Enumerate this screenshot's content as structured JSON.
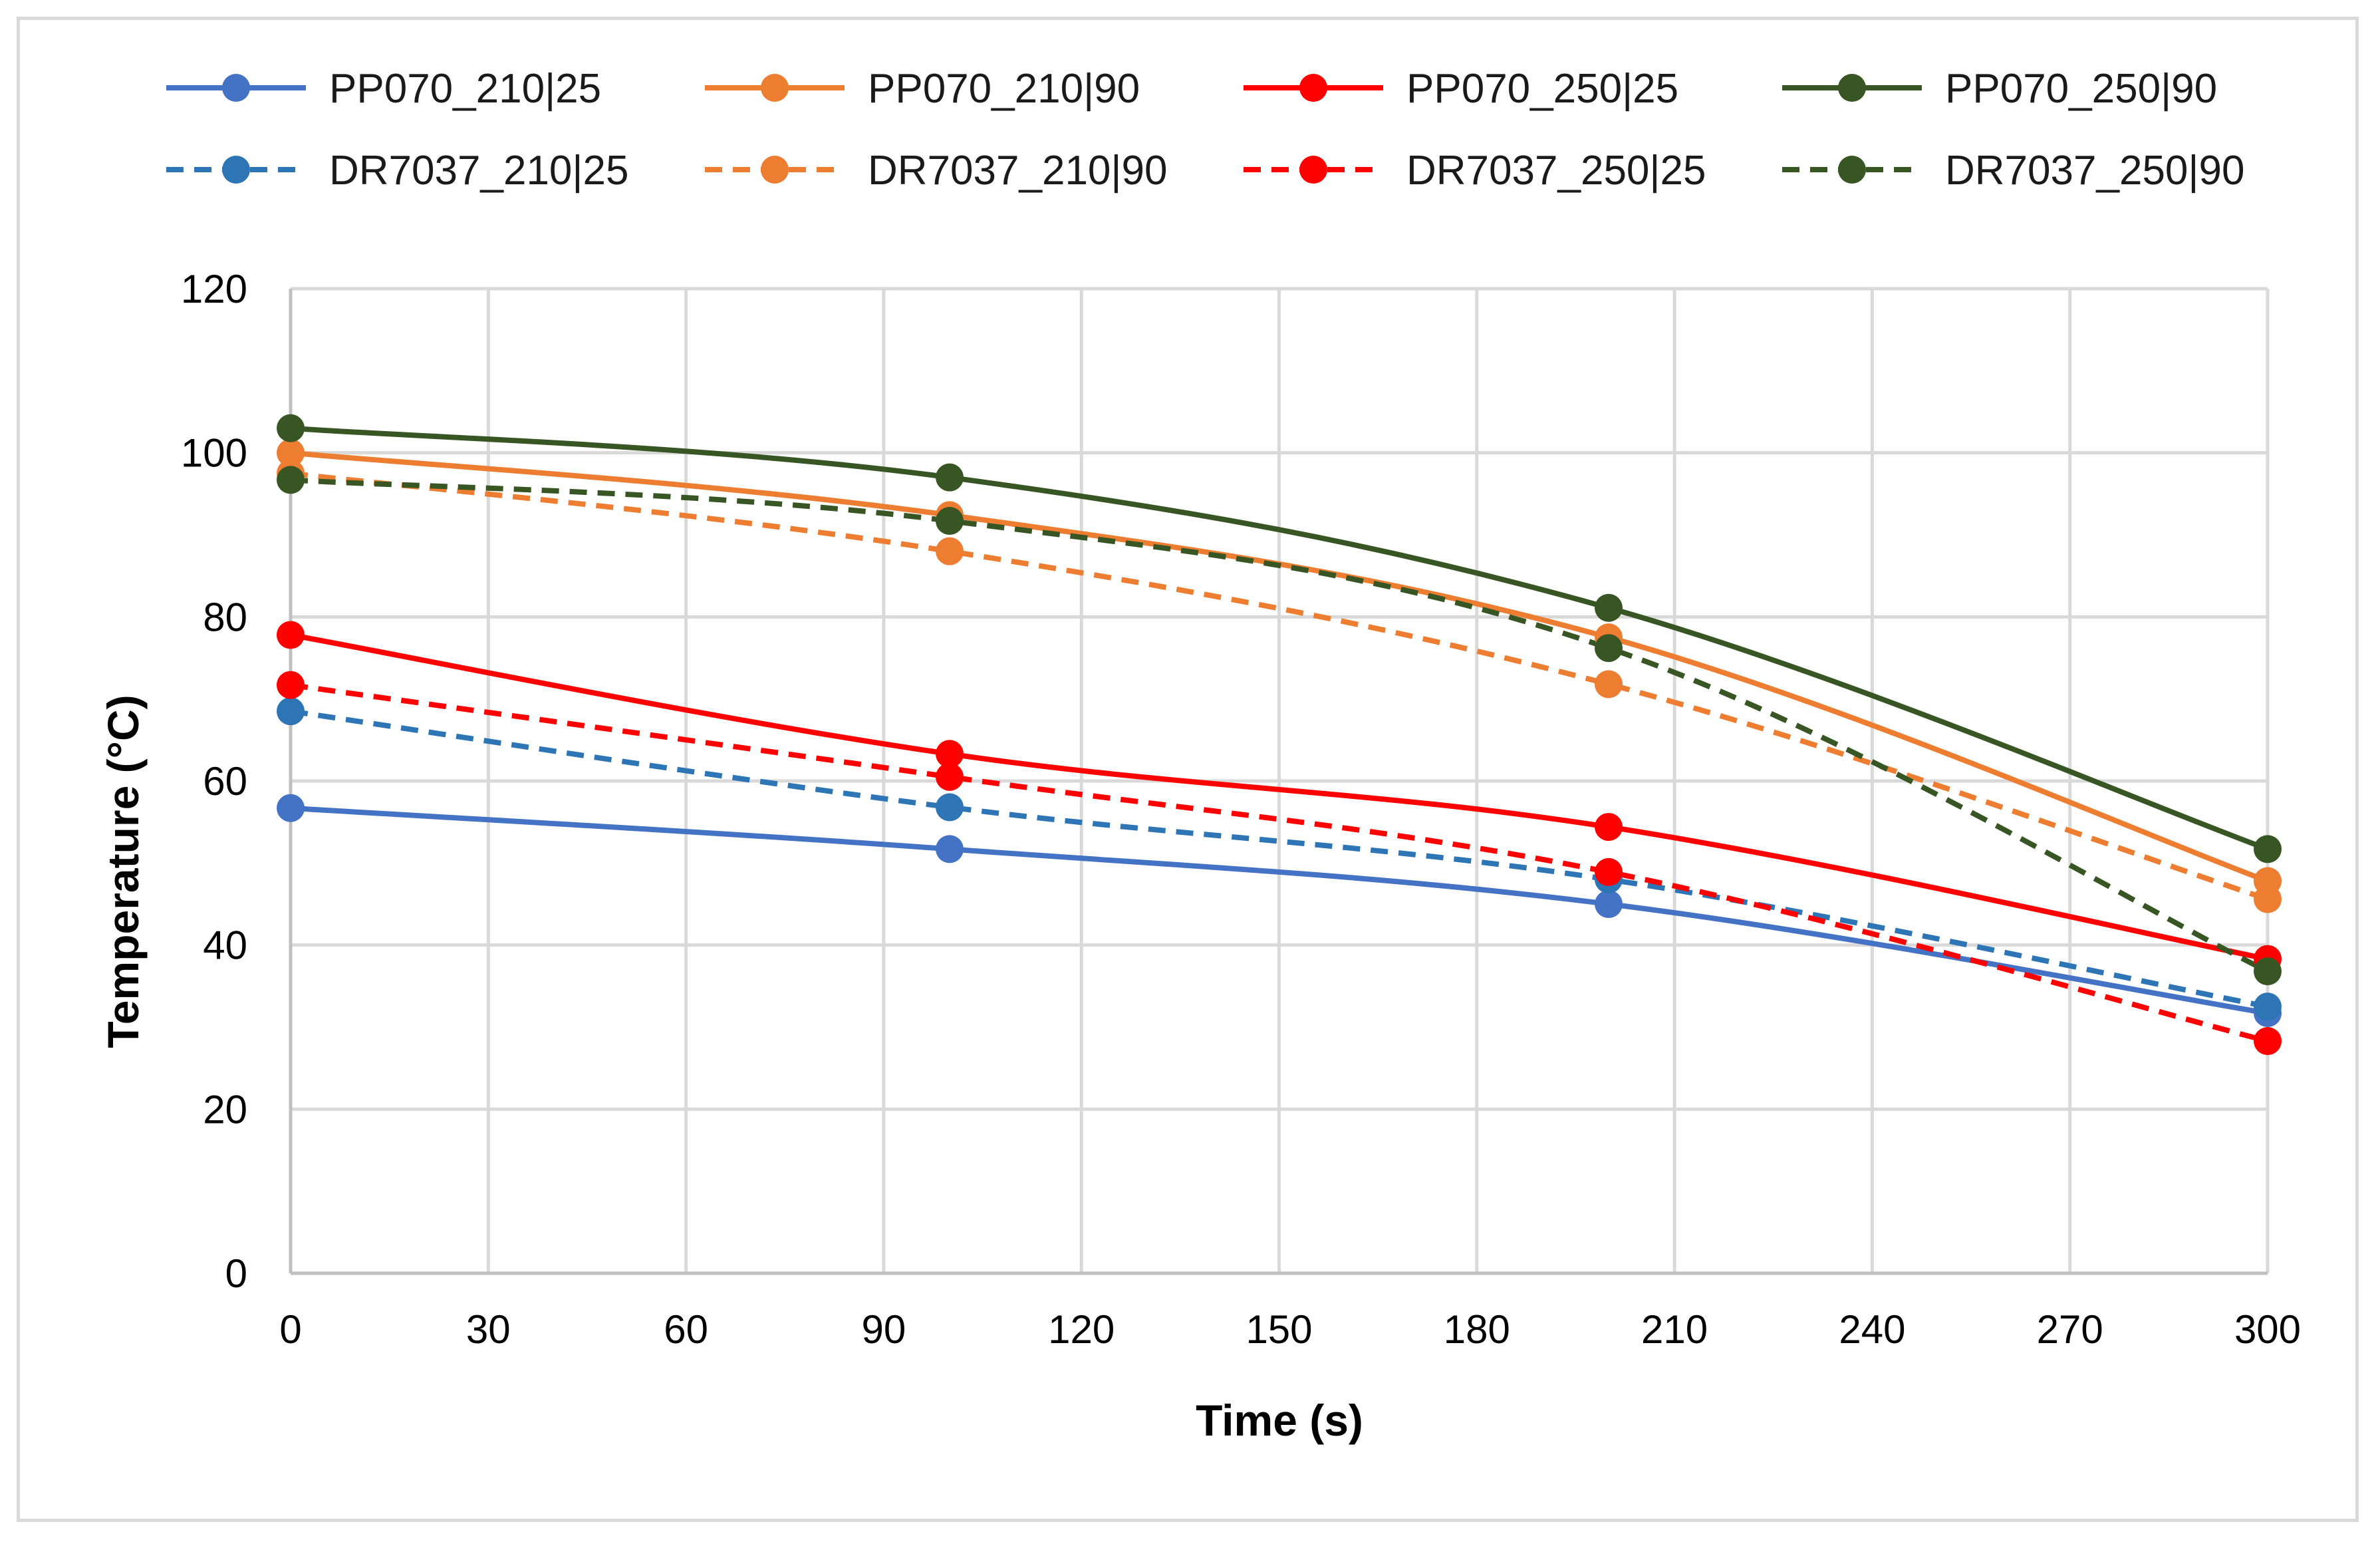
{
  "chart_data": {
    "type": "line",
    "title": "",
    "xlabel": "Time (s)",
    "ylabel": "Temperature (°C)",
    "xlim": [
      0,
      300
    ],
    "ylim": [
      0,
      120
    ],
    "xticks": [
      0,
      30,
      60,
      90,
      120,
      150,
      180,
      210,
      240,
      270,
      300
    ],
    "yticks": [
      0,
      20,
      40,
      60,
      80,
      100,
      120
    ],
    "grid": true,
    "legend_position": "top",
    "x": [
      0,
      100,
      200,
      300
    ],
    "series": [
      {
        "name": "PP070_210|25",
        "color": "#4472c4",
        "style": "solid",
        "values": [
          56.7,
          51.7,
          45.0,
          31.7
        ]
      },
      {
        "name": "PP070_210|90",
        "color": "#ed7d31",
        "style": "solid",
        "values": [
          100.0,
          92.4,
          77.5,
          47.8
        ]
      },
      {
        "name": "PP070_250|25",
        "color": "#ff0000",
        "style": "solid",
        "values": [
          77.8,
          63.3,
          54.4,
          38.3
        ]
      },
      {
        "name": "PP070_250|90",
        "color": "#375623",
        "style": "solid",
        "values": [
          103.0,
          97.0,
          81.1,
          51.7
        ]
      },
      {
        "name": "DR7037_210|25",
        "color": "#2e75b6",
        "style": "dashed",
        "values": [
          68.5,
          56.8,
          48.0,
          32.5
        ]
      },
      {
        "name": "DR7037_210|90",
        "color": "#ed7d31",
        "style": "dashed",
        "values": [
          97.5,
          88.0,
          71.8,
          45.6
        ]
      },
      {
        "name": "DR7037_250|25",
        "color": "#ff0000",
        "style": "dashed",
        "values": [
          71.7,
          60.5,
          48.9,
          28.3
        ]
      },
      {
        "name": "DR7037_250|90",
        "color": "#375623",
        "style": "dashed",
        "values": [
          96.7,
          91.7,
          76.2,
          36.8
        ]
      }
    ]
  }
}
